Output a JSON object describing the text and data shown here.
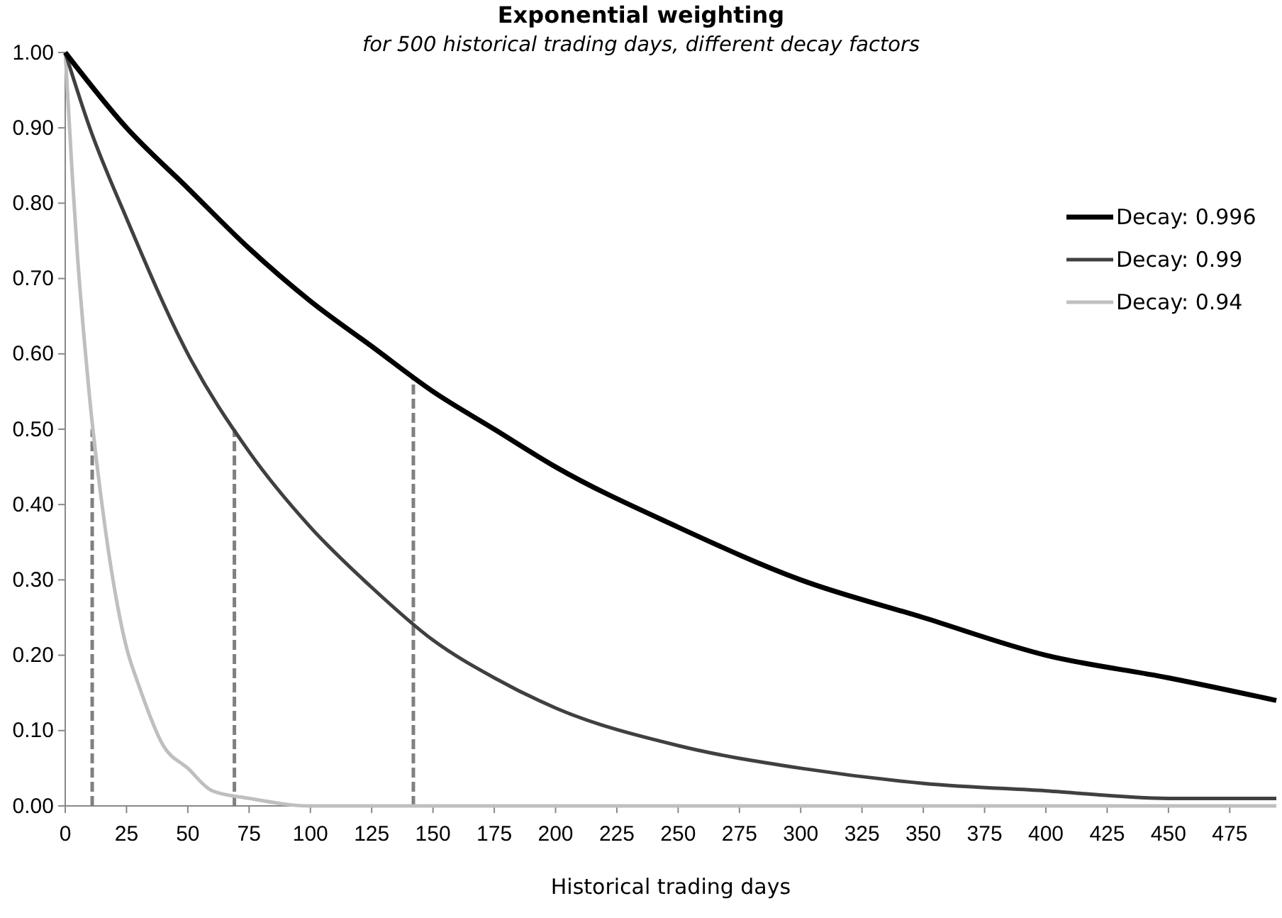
{
  "chart_data": {
    "type": "line",
    "title": "Exponential weighting",
    "subtitle": "for 500 historical trading days, different decay factors",
    "xlabel": "Historical trading days",
    "xlim": [
      0,
      494
    ],
    "xticks": [
      0,
      25,
      50,
      75,
      100,
      125,
      150,
      175,
      200,
      225,
      250,
      275,
      300,
      325,
      350,
      375,
      400,
      425,
      450,
      475
    ],
    "ylim": [
      0,
      1
    ],
    "yticks": [
      {
        "value": 0,
        "label": "0.00"
      },
      {
        "value": 0.1,
        "label": "0.10"
      },
      {
        "value": 0.2,
        "label": "0.20"
      },
      {
        "value": 0.3,
        "label": "0.30"
      },
      {
        "value": 0.4,
        "label": "0.40"
      },
      {
        "value": 0.5,
        "label": "0.50"
      },
      {
        "value": 0.6,
        "label": "0.60"
      },
      {
        "value": 0.7,
        "label": "0.70"
      },
      {
        "value": 0.8,
        "label": "0.80"
      },
      {
        "value": 0.9,
        "label": "0.90"
      },
      {
        "value": 1,
        "label": "1.00"
      }
    ],
    "grid": false,
    "legend": "top right",
    "marker": "none",
    "series": [
      {
        "name": "Decay: 0.996",
        "color": "#000000",
        "x": [
          0,
          25,
          50,
          75,
          100,
          125,
          150,
          175,
          200,
          250,
          300,
          350,
          400,
          450,
          494
        ],
        "values": [
          1,
          0.9,
          0.82,
          0.74,
          0.67,
          0.61,
          0.55,
          0.5,
          0.45,
          0.37,
          0.3,
          0.25,
          0.2,
          0.17,
          0.14
        ]
      },
      {
        "name": "Decay: 0.99",
        "color": "#404040",
        "x": [
          0,
          10,
          25,
          50,
          75,
          100,
          125,
          150,
          175,
          200,
          250,
          300,
          350,
          400,
          450,
          494
        ],
        "values": [
          1,
          0.9,
          0.78,
          0.6,
          0.47,
          0.37,
          0.29,
          0.22,
          0.17,
          0.13,
          0.08,
          0.05,
          0.03,
          0.02,
          0.01,
          0.01
        ]
      },
      {
        "name": "Decay: 0.94",
        "color": "#bfbfbf",
        "x": [
          0,
          3,
          5,
          8,
          10,
          15,
          20,
          25,
          30,
          40,
          50,
          60,
          75,
          100,
          150,
          494
        ],
        "values": [
          1,
          0.83,
          0.73,
          0.61,
          0.54,
          0.4,
          0.29,
          0.21,
          0.16,
          0.08,
          0.05,
          0.02,
          0.01,
          0,
          0,
          0
        ]
      },
      {
        "color": "#808080",
        "line_style": "dashed",
        "x": [
          11,
          11
        ],
        "values": [
          0,
          0.5
        ]
      },
      {
        "color": "#808080",
        "line_style": "dashed",
        "x": [
          69,
          69
        ],
        "values": [
          0,
          0.5
        ]
      },
      {
        "color": "#808080",
        "line_style": "dashed",
        "x": [
          142,
          142
        ],
        "values": [
          0,
          0.57
        ]
      }
    ]
  }
}
